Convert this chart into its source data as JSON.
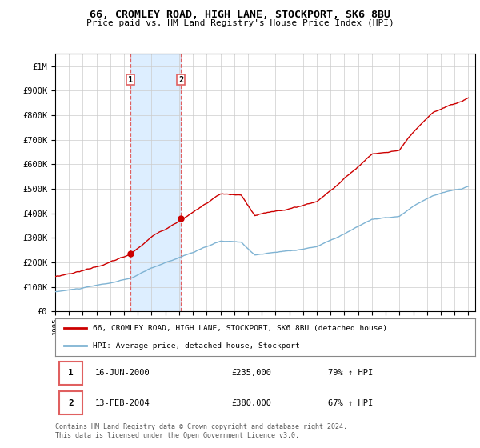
{
  "title": "66, CROMLEY ROAD, HIGH LANE, STOCKPORT, SK6 8BU",
  "subtitle": "Price paid vs. HM Land Registry's House Price Index (HPI)",
  "sale1_date_label": "16-JUN-2000",
  "sale1_price": 235000,
  "sale1_label": "1",
  "sale1_hpi_pct": "79% ↑ HPI",
  "sale2_date_label": "13-FEB-2004",
  "sale2_price": 380000,
  "sale2_label": "2",
  "sale2_hpi_pct": "67% ↑ HPI",
  "legend_line1": "66, CROMLEY ROAD, HIGH LANE, STOCKPORT, SK6 8BU (detached house)",
  "legend_line2": "HPI: Average price, detached house, Stockport",
  "footer": "Contains HM Land Registry data © Crown copyright and database right 2024.\nThis data is licensed under the Open Government Licence v3.0.",
  "red_color": "#cc0000",
  "blue_color": "#7fb3d3",
  "dashed_color": "#e06060",
  "shade_color": "#ddeeff",
  "ylim": [
    0,
    1050000
  ],
  "yticks": [
    0,
    100000,
    200000,
    300000,
    400000,
    500000,
    600000,
    700000,
    800000,
    900000,
    1000000
  ],
  "ytick_labels": [
    "£0",
    "£100K",
    "£200K",
    "£300K",
    "£400K",
    "£500K",
    "£600K",
    "£700K",
    "£800K",
    "£900K",
    "£1M"
  ],
  "xstart": 1995,
  "xend": 2025,
  "background": "#ffffff",
  "grid_color": "#cccccc"
}
